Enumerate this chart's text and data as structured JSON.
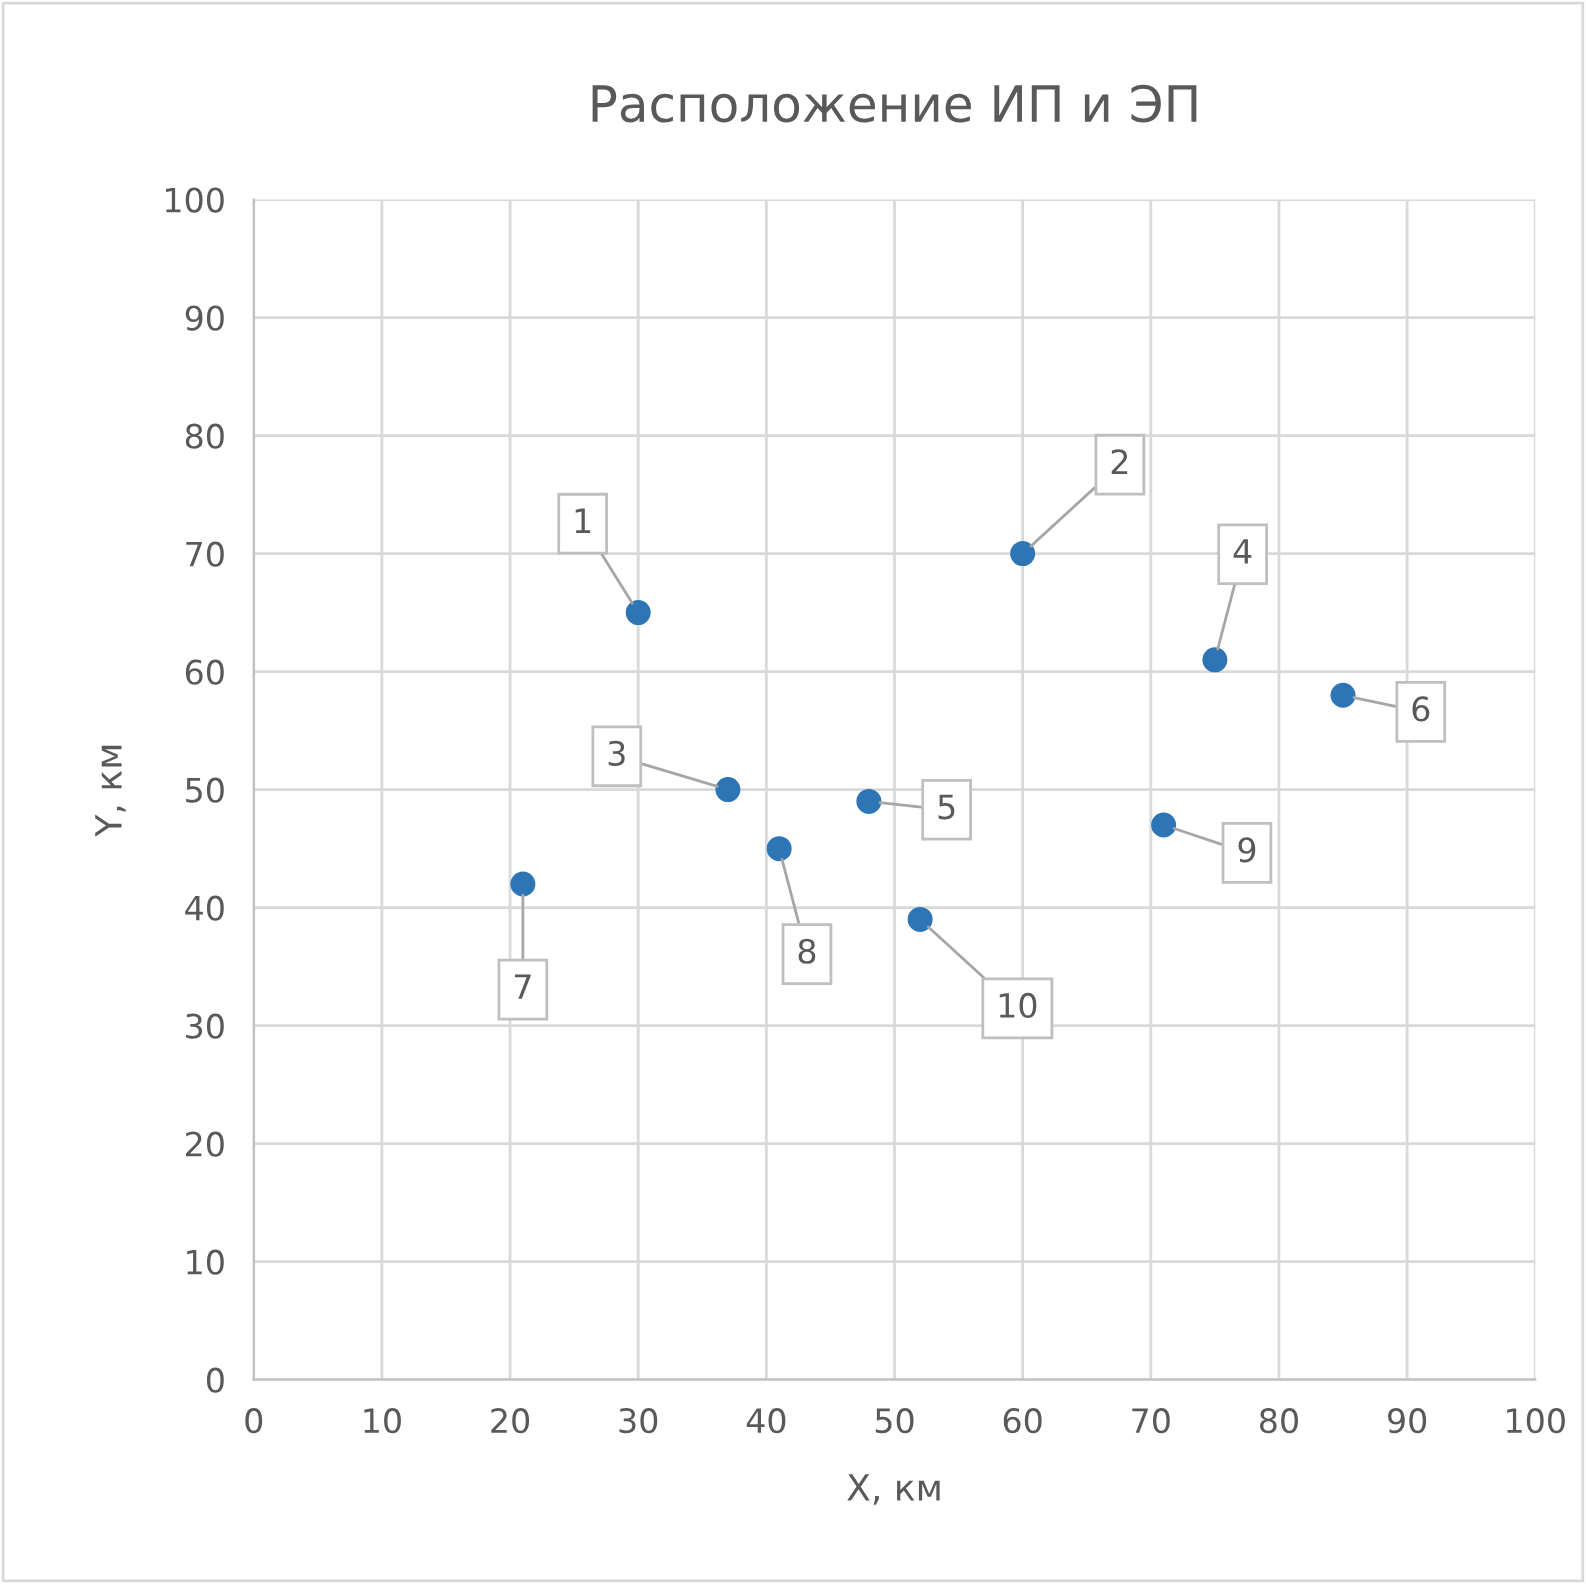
{
  "chart_data": {
    "type": "scatter",
    "title": "Расположение ИП и ЭП",
    "xlabel": "X, км",
    "ylabel": "Y, км",
    "x": [
      30,
      60,
      37,
      75,
      48,
      85,
      21,
      41,
      71,
      52
    ],
    "values": [
      65,
      70,
      50,
      61,
      49,
      58,
      42,
      45,
      47,
      39
    ],
    "color": "#2e75b6",
    "marker": "circle",
    "grid": true,
    "legend": false,
    "xlim": [
      0,
      100
    ],
    "xticks": [
      0,
      10,
      20,
      30,
      40,
      50,
      60,
      70,
      80,
      90,
      100
    ],
    "ylim": [
      0,
      100
    ],
    "yticks": [
      0,
      10,
      20,
      30,
      40,
      50,
      60,
      70,
      80,
      90,
      100
    ],
    "annotations": [
      {
        "text": "1",
        "x": 30,
        "y": 65
      },
      {
        "text": "2",
        "x": 60,
        "y": 70
      },
      {
        "text": "3",
        "x": 37,
        "y": 50
      },
      {
        "text": "4",
        "x": 75,
        "y": 61
      },
      {
        "text": "5",
        "x": 48,
        "y": 49
      },
      {
        "text": "6",
        "x": 85,
        "y": 58
      },
      {
        "text": "7",
        "x": 21,
        "y": 42
      },
      {
        "text": "8",
        "x": 41,
        "y": 45
      },
      {
        "text": "9",
        "x": 71,
        "y": 47
      },
      {
        "text": "10",
        "x": 52,
        "y": 39
      }
    ]
  }
}
